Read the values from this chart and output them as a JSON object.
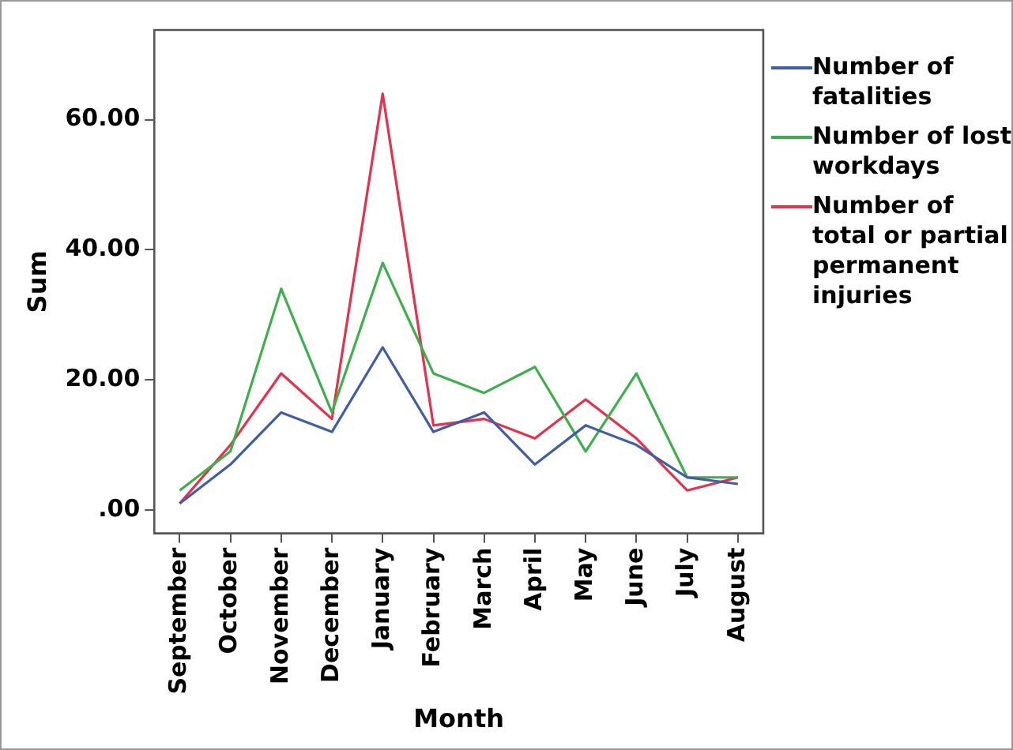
{
  "chart_data": {
    "type": "line",
    "xlabel": "Month",
    "ylabel": "Sum",
    "categories": [
      "September",
      "October",
      "November",
      "December",
      "January",
      "February",
      "March",
      "April",
      "May",
      "June",
      "July",
      "August"
    ],
    "series": [
      {
        "name": "Number of fatalities",
        "color": "#3e5dab",
        "values": [
          1,
          7,
          15,
          12,
          25,
          12,
          15,
          7,
          13,
          10,
          5,
          4
        ]
      },
      {
        "name": "Number of lost workdays",
        "color": "#3cb04a",
        "values": [
          3,
          9,
          34,
          15,
          38,
          21,
          18,
          22,
          9,
          21,
          5,
          5
        ]
      },
      {
        "name": "Number of total or partial permanent injuries",
        "color": "#e8304a",
        "values": [
          1,
          10,
          21,
          14,
          64,
          13,
          14,
          11,
          17,
          11,
          3,
          5
        ]
      }
    ],
    "ylim": [
      -3.6,
      73.8
    ],
    "yticks": [
      {
        "value": 0,
        "label": ".00"
      },
      {
        "value": 20,
        "label": "20.00"
      },
      {
        "value": 40,
        "label": "40.00"
      },
      {
        "value": 60,
        "label": "60.00"
      }
    ],
    "grid": false,
    "legend": "right",
    "marker": "none",
    "line_style": "solid"
  }
}
